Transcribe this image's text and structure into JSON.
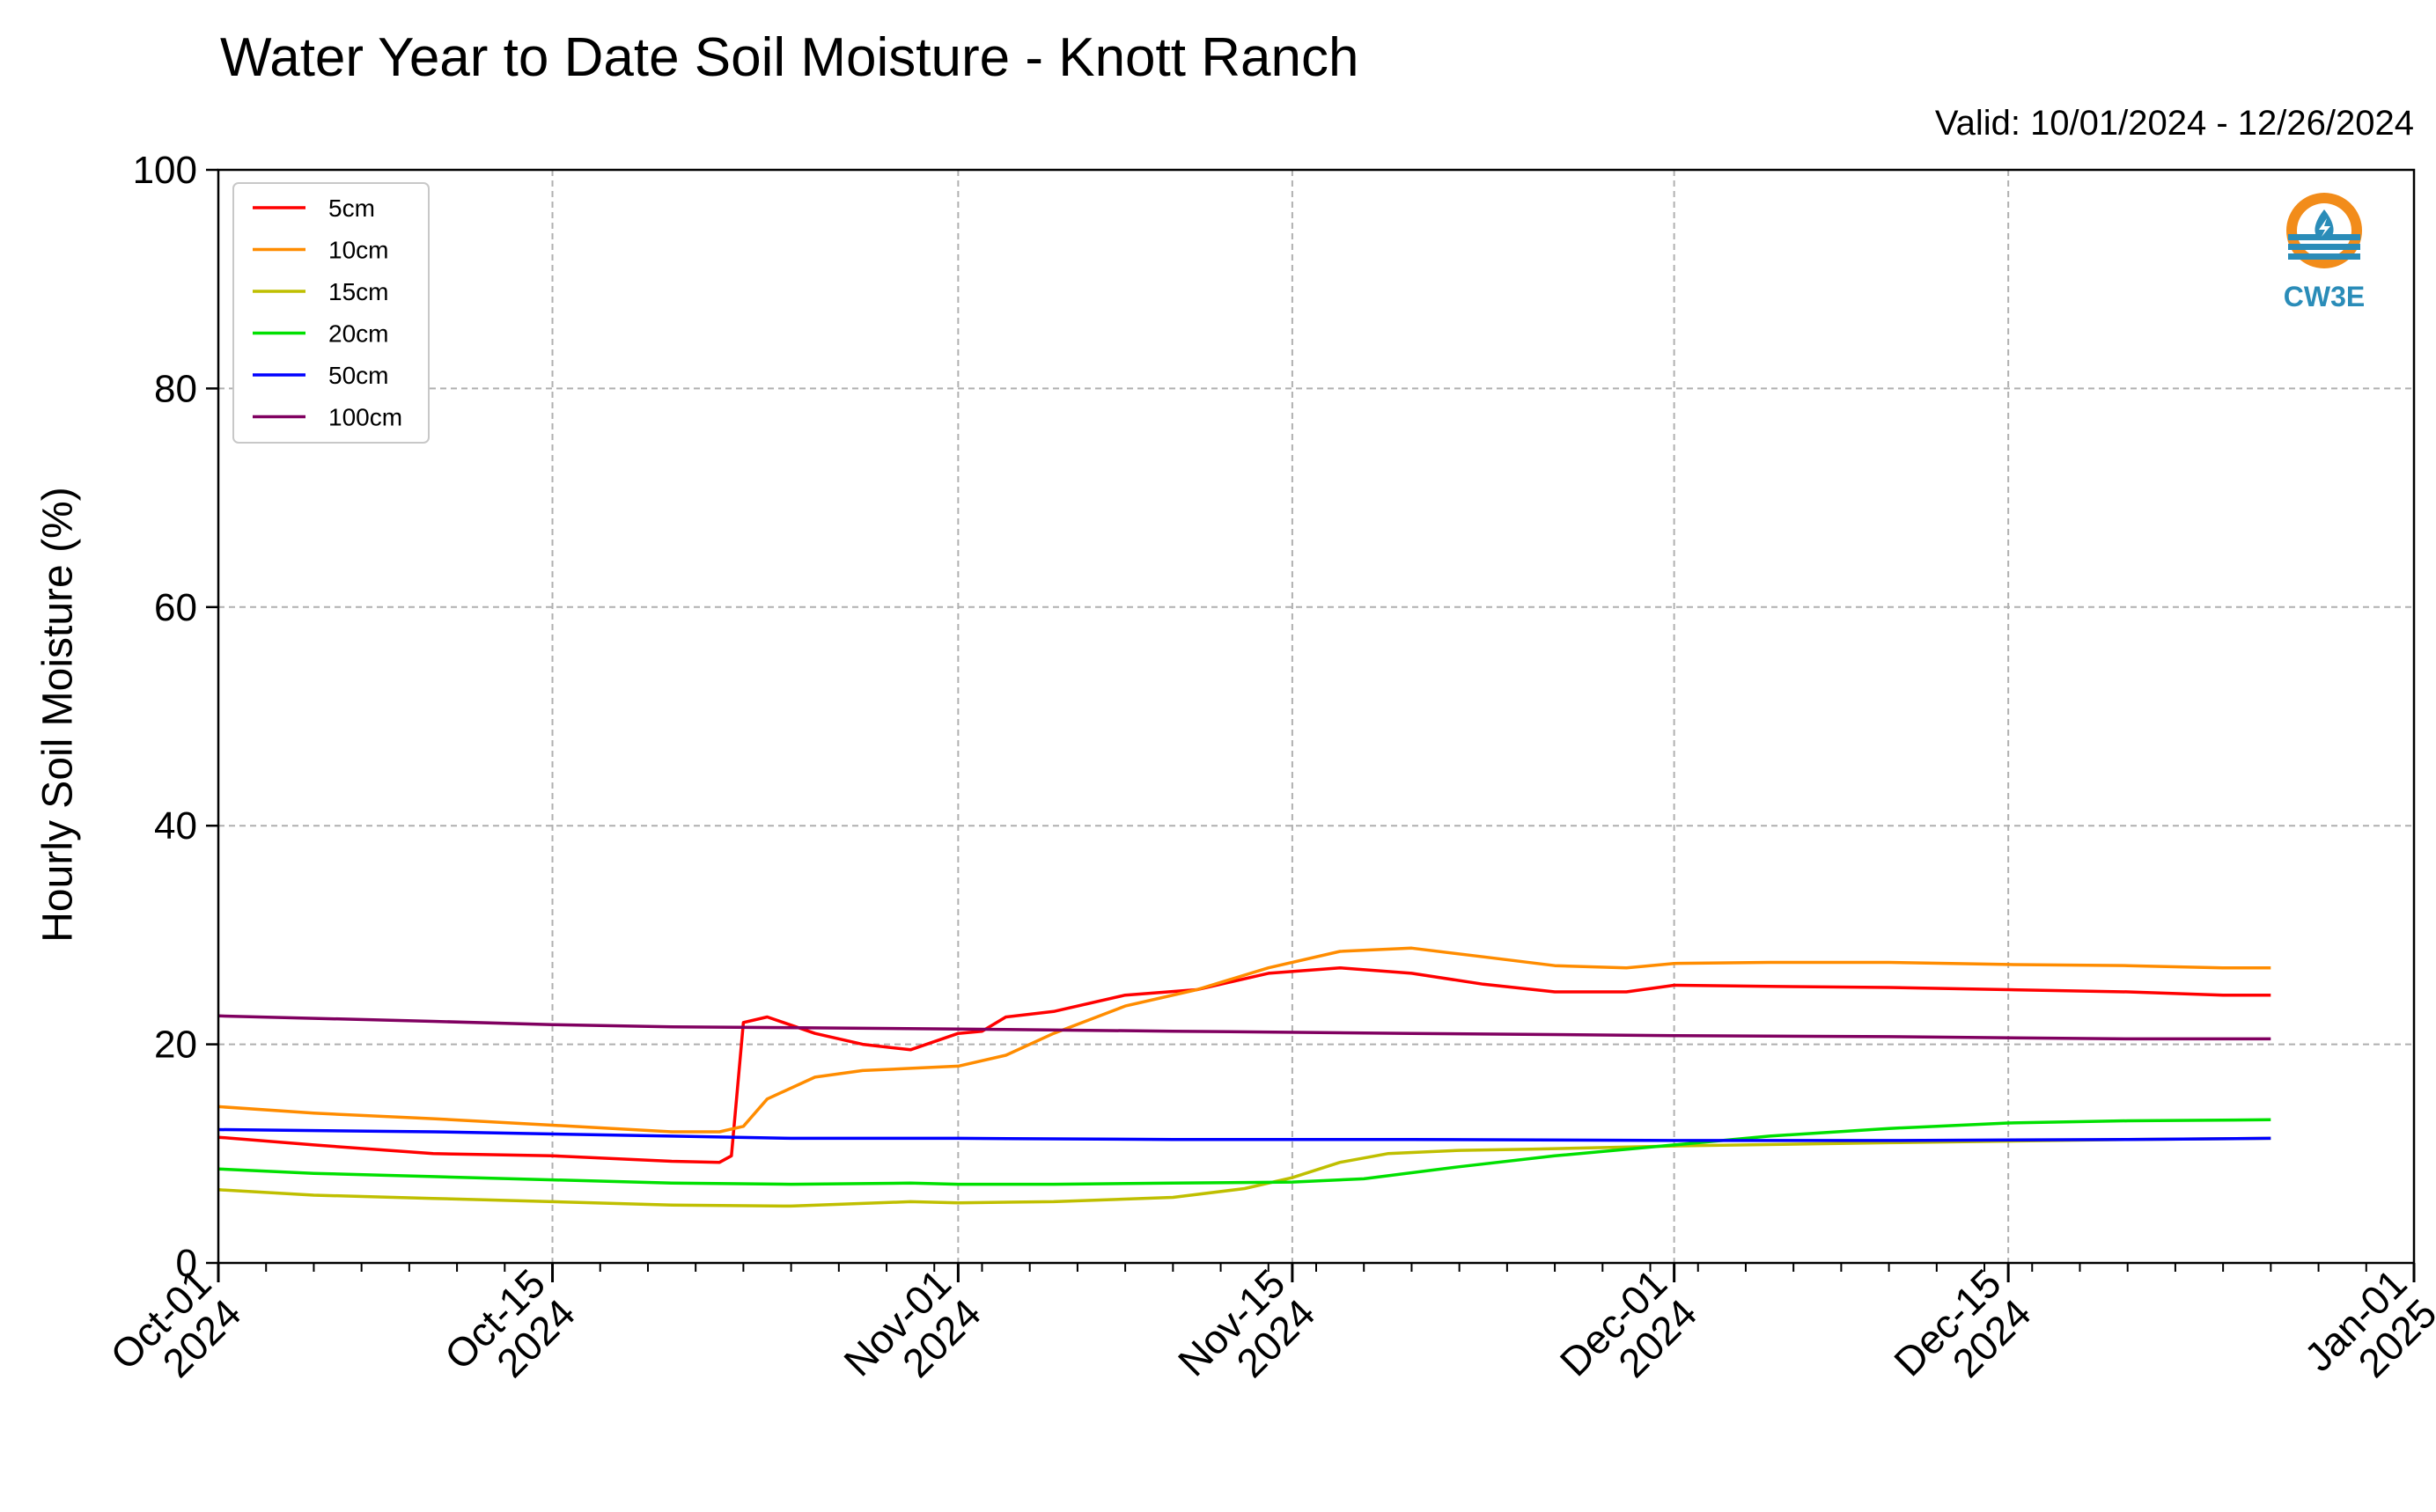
{
  "chart_data": {
    "type": "line",
    "title": "Water Year to Date Soil Moisture - Knott Ranch",
    "subtitle": "Valid: 10/01/2024 - 12/26/2024",
    "xlabel": "",
    "ylabel": "Hourly Soil Moisture (%)",
    "ylim": [
      0,
      100
    ],
    "xlim": [
      "2024-10-01",
      "2025-01-01"
    ],
    "yticks": [
      "0",
      "20",
      "40",
      "60",
      "80",
      "100"
    ],
    "xticks": [
      {
        "date": "2024-10-01",
        "label": [
          "Oct-01",
          "2024"
        ]
      },
      {
        "date": "2024-10-15",
        "label": [
          "Oct-15",
          "2024"
        ]
      },
      {
        "date": "2024-11-01",
        "label": [
          "Nov-01",
          "2024"
        ]
      },
      {
        "date": "2024-11-15",
        "label": [
          "Nov-15",
          "2024"
        ]
      },
      {
        "date": "2024-12-01",
        "label": [
          "Dec-01",
          "2024"
        ]
      },
      {
        "date": "2024-12-15",
        "label": [
          "Dec-15",
          "2024"
        ]
      },
      {
        "date": "2025-01-01",
        "label": [
          "Jan-01",
          "2025"
        ]
      }
    ],
    "grid": true,
    "legend_position": "top-left",
    "series": [
      {
        "name": "5cm",
        "color": "#ff0000",
        "x": [
          "2024-10-01",
          "2024-10-05",
          "2024-10-10",
          "2024-10-15",
          "2024-10-20",
          "2024-10-22",
          "2024-10-22 12:00",
          "2024-10-23",
          "2024-10-24",
          "2024-10-26",
          "2024-10-28",
          "2024-10-30",
          "2024-11-01",
          "2024-11-02",
          "2024-11-03",
          "2024-11-05",
          "2024-11-08",
          "2024-11-11",
          "2024-11-14",
          "2024-11-17",
          "2024-11-20",
          "2024-11-23",
          "2024-11-26",
          "2024-11-29",
          "2024-12-01",
          "2024-12-05",
          "2024-12-10",
          "2024-12-15",
          "2024-12-20",
          "2024-12-24",
          "2024-12-26"
        ],
        "y": [
          11.5,
          10.8,
          10.0,
          9.8,
          9.3,
          9.2,
          9.8,
          22.0,
          22.5,
          21.0,
          20.0,
          19.5,
          21.0,
          21.2,
          22.5,
          23.0,
          24.5,
          25.0,
          26.5,
          27.0,
          26.5,
          25.5,
          24.8,
          24.8,
          25.4,
          25.3,
          25.2,
          25.0,
          24.8,
          24.5,
          24.5
        ]
      },
      {
        "name": "10cm",
        "color": "#ff8c00",
        "x": [
          "2024-10-01",
          "2024-10-05",
          "2024-10-10",
          "2024-10-15",
          "2024-10-20",
          "2024-10-22",
          "2024-10-23",
          "2024-10-24",
          "2024-10-26",
          "2024-10-28",
          "2024-10-30",
          "2024-11-01",
          "2024-11-03",
          "2024-11-05",
          "2024-11-08",
          "2024-11-11",
          "2024-11-14",
          "2024-11-17",
          "2024-11-20",
          "2024-11-23",
          "2024-11-26",
          "2024-11-29",
          "2024-12-01",
          "2024-12-05",
          "2024-12-10",
          "2024-12-15",
          "2024-12-20",
          "2024-12-24",
          "2024-12-26"
        ],
        "y": [
          14.3,
          13.7,
          13.2,
          12.6,
          12.0,
          12.0,
          12.5,
          15.0,
          17.0,
          17.6,
          17.8,
          18.0,
          19.0,
          21.0,
          23.5,
          25.0,
          27.0,
          28.5,
          28.8,
          28.0,
          27.2,
          27.0,
          27.4,
          27.5,
          27.5,
          27.3,
          27.2,
          27.0,
          27.0
        ]
      },
      {
        "name": "15cm",
        "color": "#bfbf00",
        "x": [
          "2024-10-01",
          "2024-10-05",
          "2024-10-10",
          "2024-10-15",
          "2024-10-20",
          "2024-10-25",
          "2024-10-30",
          "2024-11-01",
          "2024-11-05",
          "2024-11-10",
          "2024-11-13",
          "2024-11-15",
          "2024-11-17",
          "2024-11-19",
          "2024-11-22",
          "2024-11-25",
          "2024-12-01",
          "2024-12-10",
          "2024-12-20",
          "2024-12-26"
        ],
        "y": [
          6.7,
          6.2,
          5.9,
          5.6,
          5.3,
          5.2,
          5.6,
          5.5,
          5.6,
          6.0,
          6.8,
          7.8,
          9.2,
          10.0,
          10.3,
          10.4,
          10.7,
          11.0,
          11.3,
          11.4
        ]
      },
      {
        "name": "20cm",
        "color": "#00e000",
        "x": [
          "2024-10-01",
          "2024-10-05",
          "2024-10-10",
          "2024-10-15",
          "2024-10-20",
          "2024-10-25",
          "2024-10-30",
          "2024-11-01",
          "2024-11-05",
          "2024-11-10",
          "2024-11-15",
          "2024-11-18",
          "2024-11-22",
          "2024-11-26",
          "2024-12-01",
          "2024-12-05",
          "2024-12-10",
          "2024-12-15",
          "2024-12-20",
          "2024-12-26"
        ],
        "y": [
          8.6,
          8.2,
          7.9,
          7.6,
          7.3,
          7.2,
          7.3,
          7.2,
          7.2,
          7.3,
          7.4,
          7.7,
          8.8,
          9.8,
          10.8,
          11.6,
          12.3,
          12.8,
          13.0,
          13.1
        ]
      },
      {
        "name": "50cm",
        "color": "#0000ff",
        "x": [
          "2024-10-01",
          "2024-10-10",
          "2024-10-20",
          "2024-10-25",
          "2024-11-01",
          "2024-11-10",
          "2024-11-20",
          "2024-12-01",
          "2024-12-10",
          "2024-12-20",
          "2024-12-26"
        ],
        "y": [
          12.2,
          12.0,
          11.6,
          11.4,
          11.4,
          11.3,
          11.3,
          11.2,
          11.2,
          11.3,
          11.4
        ]
      },
      {
        "name": "100cm",
        "color": "#800060",
        "x": [
          "2024-10-01",
          "2024-10-10",
          "2024-10-15",
          "2024-10-20",
          "2024-11-01",
          "2024-11-10",
          "2024-11-20",
          "2024-12-01",
          "2024-12-10",
          "2024-12-20",
          "2024-12-26"
        ],
        "y": [
          22.6,
          22.1,
          21.8,
          21.6,
          21.4,
          21.2,
          21.0,
          20.8,
          20.7,
          20.5,
          20.5
        ]
      }
    ]
  },
  "logo": {
    "text": "CW3E",
    "ring_color": "#f28c1a",
    "wave_color": "#2a8cb8"
  }
}
